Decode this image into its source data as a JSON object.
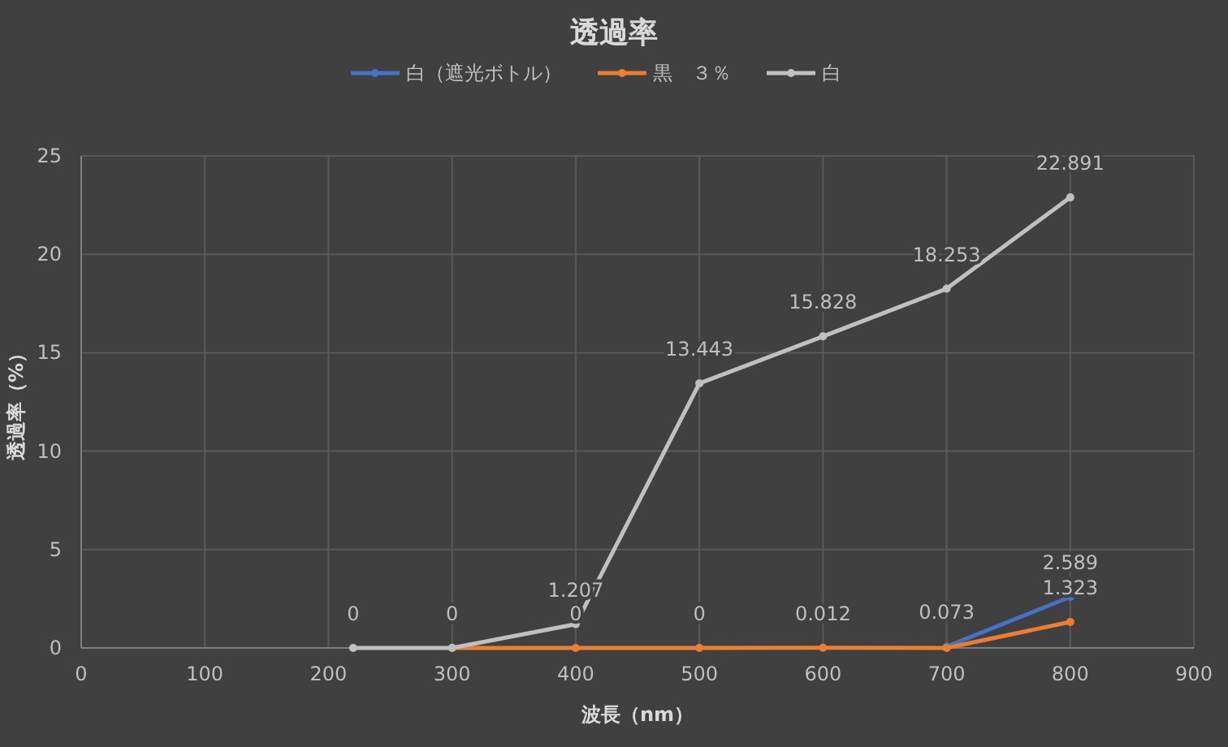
{
  "chart_data": {
    "type": "line",
    "title": "透過率",
    "xlabel": "波長（nm）",
    "ylabel": "透過率（%）",
    "x": [
      220,
      300,
      400,
      500,
      600,
      700,
      800
    ],
    "series": [
      {
        "name": "白（遮光ボトル）",
        "color": "#4472c4",
        "values": [
          null,
          null,
          null,
          null,
          null,
          0.073,
          2.589
        ],
        "value_labels": [
          null,
          null,
          null,
          null,
          null,
          "0.073",
          "2.589"
        ]
      },
      {
        "name": "黒　３％",
        "color": "#ed7d31",
        "values": [
          null,
          0,
          0,
          0,
          0.012,
          0,
          1.323
        ],
        "value_labels": [
          null,
          null,
          "0",
          "0",
          "0.012",
          null,
          "1.323"
        ]
      },
      {
        "name": "白",
        "color": "#c0c0c0",
        "values": [
          0,
          0,
          1.207,
          13.443,
          15.828,
          18.253,
          22.891
        ],
        "value_labels": [
          "0",
          "0",
          "1.207",
          "13.443",
          "15.828",
          "18.253",
          "22.891"
        ]
      }
    ],
    "xlim": [
      0,
      900
    ],
    "xticks": [
      0,
      100,
      200,
      300,
      400,
      500,
      600,
      700,
      800,
      900
    ],
    "ylim": [
      0,
      25
    ],
    "yticks": [
      0,
      5,
      10,
      15,
      20,
      25
    ],
    "grid": true,
    "legend": "top",
    "marker": "circle",
    "line_style": "solid"
  }
}
